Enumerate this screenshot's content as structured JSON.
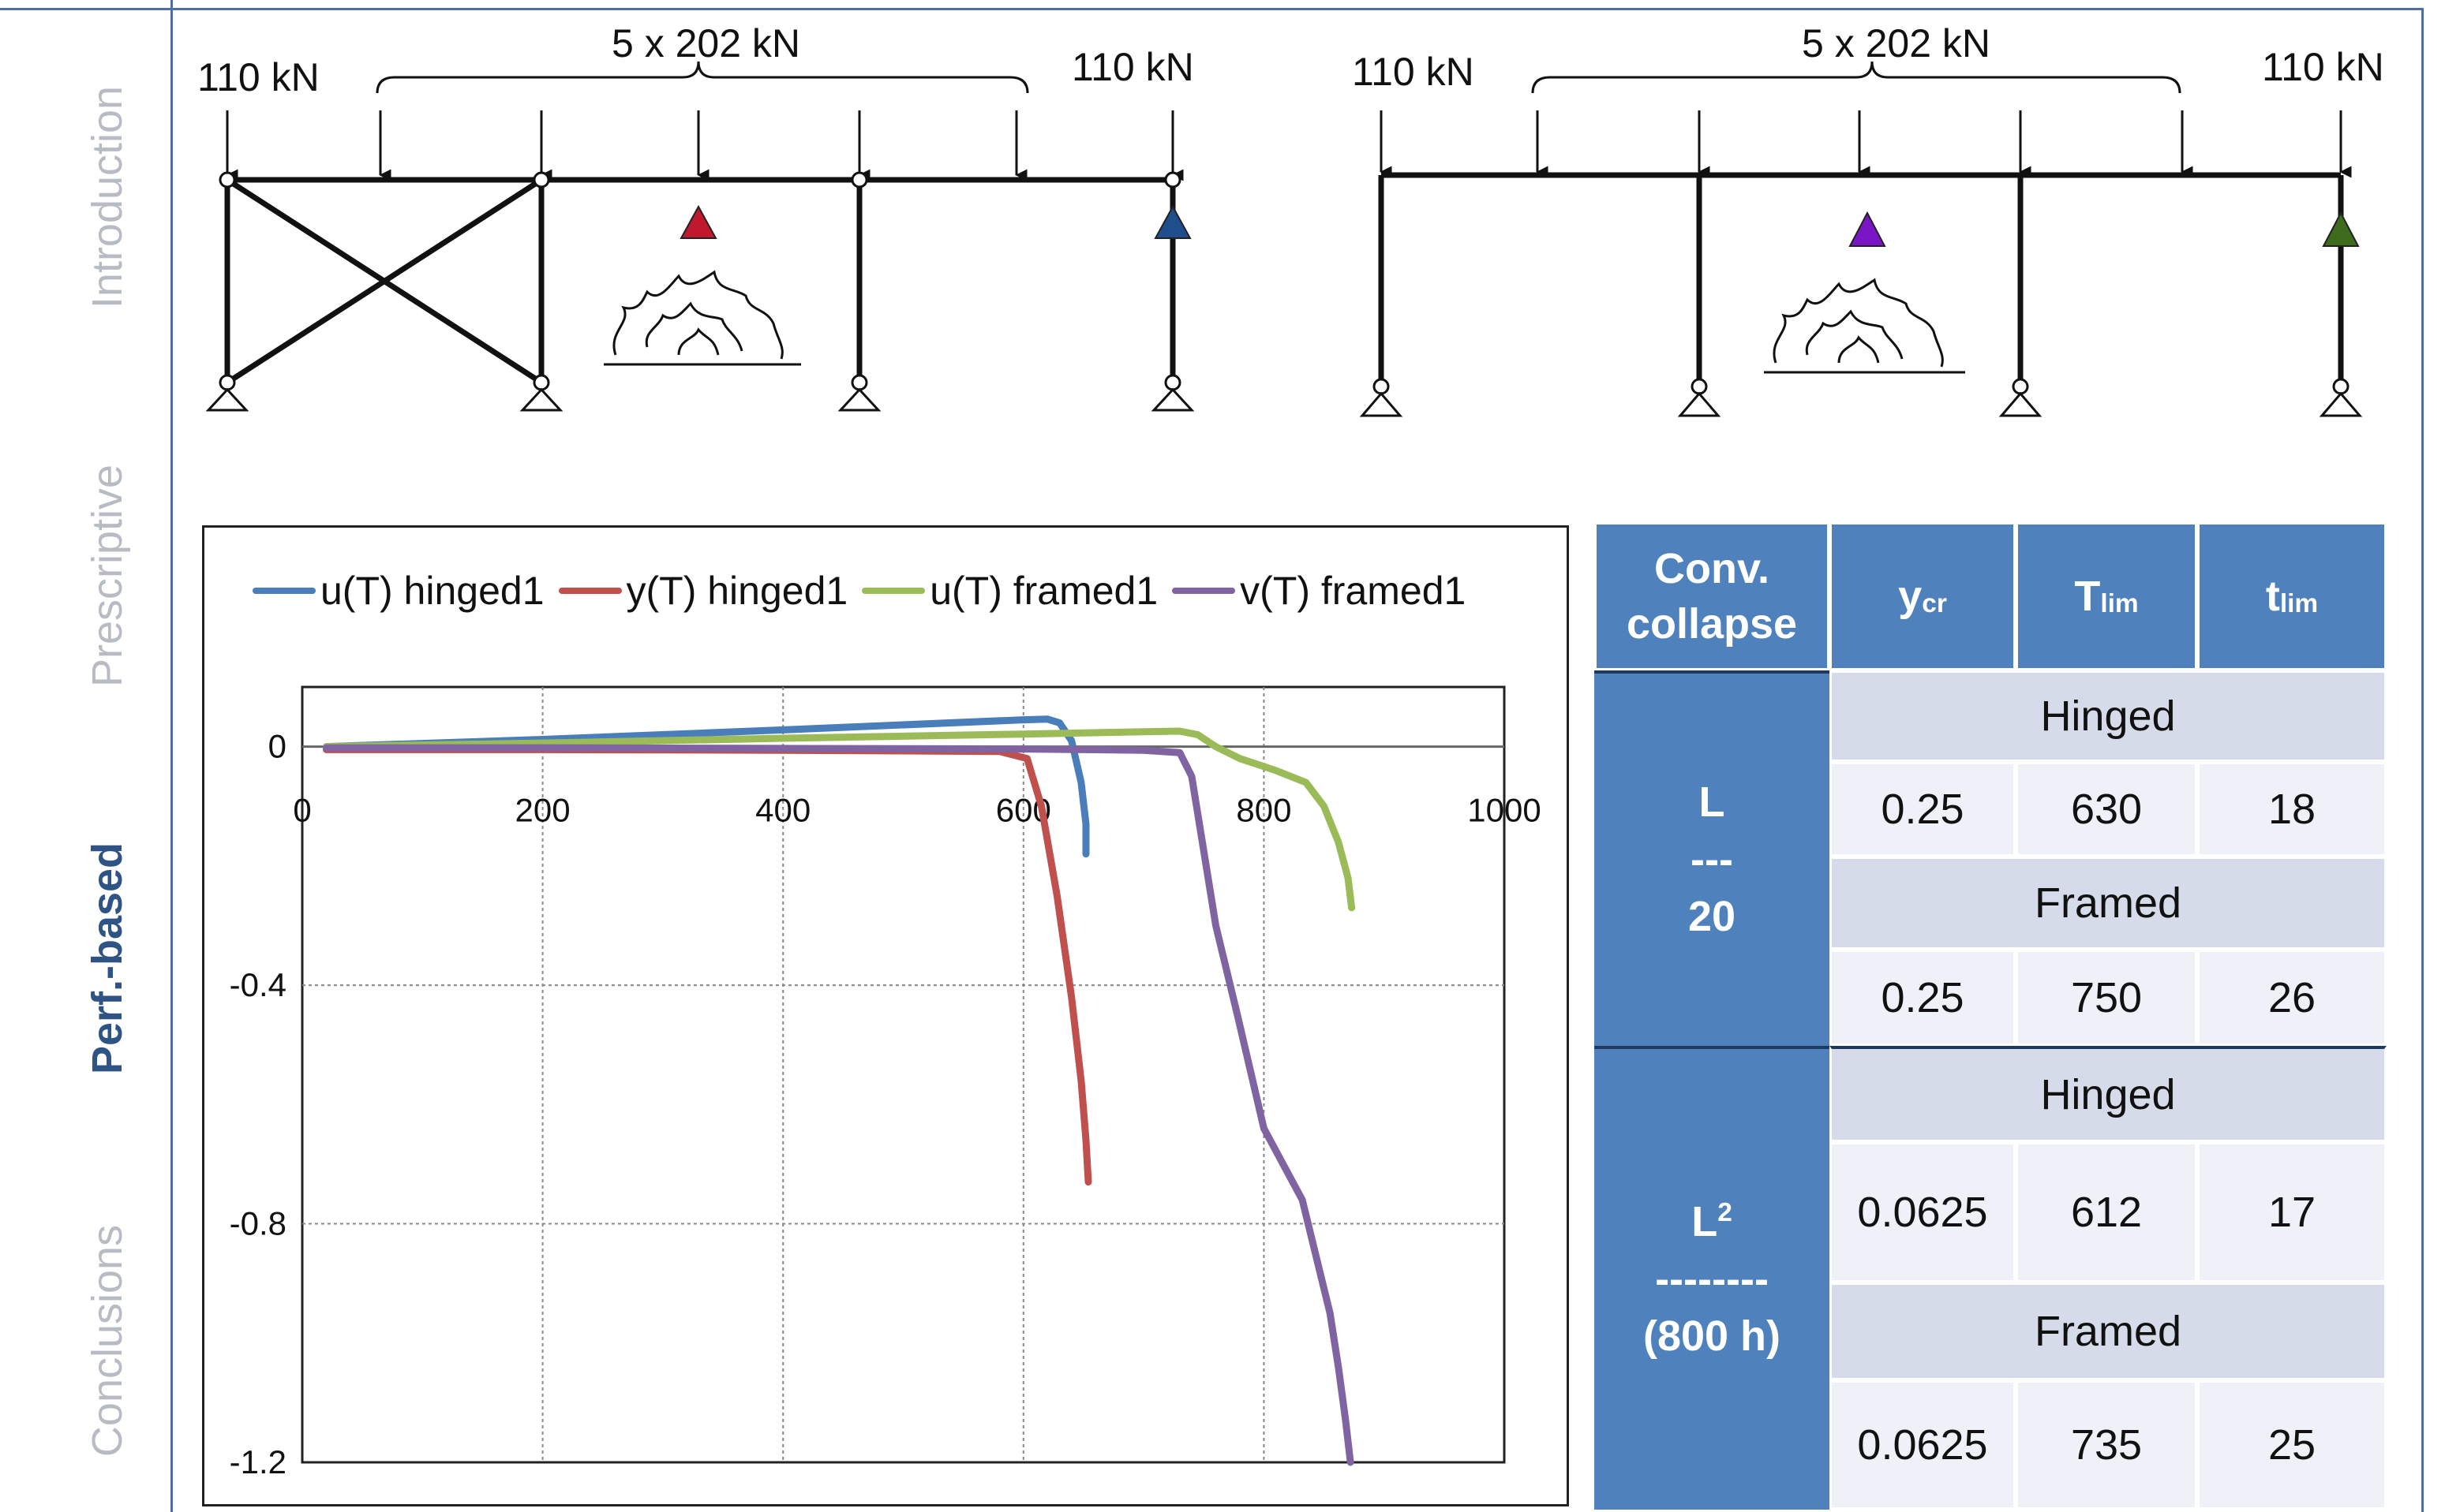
{
  "nav": {
    "introduction": "Introduction",
    "prescriptive": "Prescriptive",
    "perf_based": "Perf.-based",
    "conclusions": "Conclusions"
  },
  "diagrams": {
    "left": {
      "load_left": "110 kN",
      "load_group": "5 x 202 kN",
      "load_right": "110 kN",
      "sensor_colors": [
        "#c0182c",
        "#1f4e8c"
      ]
    },
    "right": {
      "load_left": "110 kN",
      "load_group": "5 x 202 kN",
      "load_right": "110 kN",
      "sensor_colors": [
        "#7b16c7",
        "#3e6b1c"
      ]
    }
  },
  "chart_data": {
    "type": "line",
    "title": "",
    "xlabel": "",
    "ylabel": "",
    "xlim": [
      0,
      1000
    ],
    "ylim": [
      -1.2,
      0.1
    ],
    "xticks": [
      "0",
      "200",
      "400",
      "600",
      "800",
      "1000"
    ],
    "yticks": [
      "0",
      "-0.4",
      "-0.8",
      "-1.2"
    ],
    "grid": true,
    "legend_position": "top",
    "series": [
      {
        "name": "u(T) hinged1",
        "color": "#4a7ebb",
        "x": [
          20,
          200,
          400,
          600,
          620,
          630,
          640,
          648,
          652,
          652
        ],
        "y": [
          0,
          0.012,
          0.028,
          0.045,
          0.046,
          0.04,
          0.01,
          -0.06,
          -0.13,
          -0.18
        ]
      },
      {
        "name": "y(T) hinged1",
        "color": "#c0504d",
        "x": [
          20,
          200,
          400,
          580,
          603,
          615,
          628,
          640,
          648,
          652,
          654
        ],
        "y": [
          -0.005,
          -0.005,
          -0.006,
          -0.008,
          -0.02,
          -0.1,
          -0.25,
          -0.42,
          -0.56,
          -0.66,
          -0.73
        ]
      },
      {
        "name": "u(T) framed1",
        "color": "#9bbb59",
        "x": [
          20,
          200,
          400,
          600,
          700,
          730,
          745,
          760,
          780,
          810,
          835,
          850,
          862,
          870,
          873
        ],
        "y": [
          0,
          0.006,
          0.014,
          0.021,
          0.025,
          0.026,
          0.02,
          0.0,
          -0.02,
          -0.04,
          -0.06,
          -0.1,
          -0.16,
          -0.22,
          -0.27
        ]
      },
      {
        "name": "v(T) framed1",
        "color": "#8064a2",
        "x": [
          20,
          200,
          400,
          600,
          700,
          730,
          740,
          748,
          760,
          778,
          800,
          832,
          855,
          862,
          868,
          872
        ],
        "y": [
          -0.002,
          -0.002,
          -0.003,
          -0.004,
          -0.006,
          -0.01,
          -0.05,
          -0.15,
          -0.3,
          -0.45,
          -0.64,
          -0.76,
          -0.95,
          -1.04,
          -1.13,
          -1.2
        ]
      }
    ]
  },
  "table": {
    "headers": {
      "conv": "Conv.",
      "collapse": "collapse",
      "ycr": "y",
      "ycr_sub": "cr",
      "tlim_T": "T",
      "tlim_T_sub": "lim",
      "tlim_t": "t",
      "tlim_t_sub": "lim"
    },
    "group1": {
      "line1": "L",
      "line2": "---",
      "line3": "20",
      "hinged_label": "Hinged",
      "hinged": [
        "0.25",
        "630",
        "18"
      ],
      "framed_label": "Framed",
      "framed": [
        "0.25",
        "750",
        "26"
      ]
    },
    "group2": {
      "line1": "L",
      "line1_sup": "2",
      "line2": "--------",
      "line3": "(800 h)",
      "hinged_label": "Hinged",
      "hinged": [
        "0.0625",
        "612",
        "17"
      ],
      "framed_label": "Framed",
      "framed": [
        "0.0625",
        "735",
        "25"
      ]
    }
  }
}
